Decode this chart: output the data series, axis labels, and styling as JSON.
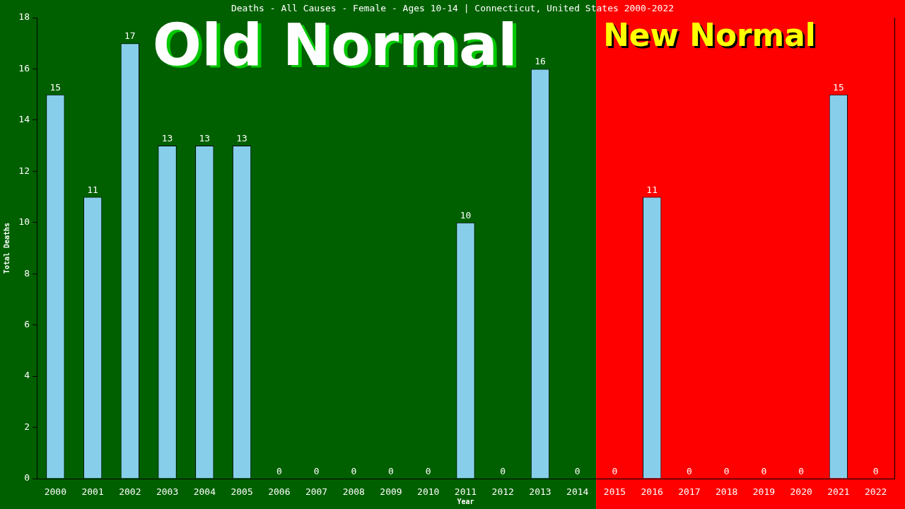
{
  "chart_data": {
    "type": "bar",
    "title": "Deaths - All Causes - Female - Ages 10-14 | Connecticut, United States 2000-2022",
    "xlabel": "Year",
    "ylabel": "Total Deaths",
    "categories": [
      "2000",
      "2001",
      "2002",
      "2003",
      "2004",
      "2005",
      "2006",
      "2007",
      "2008",
      "2009",
      "2010",
      "2011",
      "2012",
      "2013",
      "2014",
      "2015",
      "2016",
      "2017",
      "2018",
      "2019",
      "2020",
      "2021",
      "2022"
    ],
    "values": [
      15,
      11,
      17,
      13,
      13,
      13,
      0,
      0,
      0,
      0,
      0,
      10,
      0,
      16,
      0,
      0,
      11,
      0,
      0,
      0,
      0,
      15,
      0
    ],
    "color": "#87ceeb",
    "ylim": [
      0,
      18
    ],
    "yticks": [
      0,
      2,
      4,
      6,
      8,
      10,
      12,
      14,
      16,
      18
    ],
    "data_labels": true,
    "bands": [
      {
        "axis": "x",
        "from": "2000",
        "to": "2014",
        "label": "Old Normal",
        "color": "#006000"
      },
      {
        "axis": "x",
        "from": "2015",
        "to": "2022",
        "label": "New Normal",
        "color": "#ff0000"
      }
    ]
  }
}
